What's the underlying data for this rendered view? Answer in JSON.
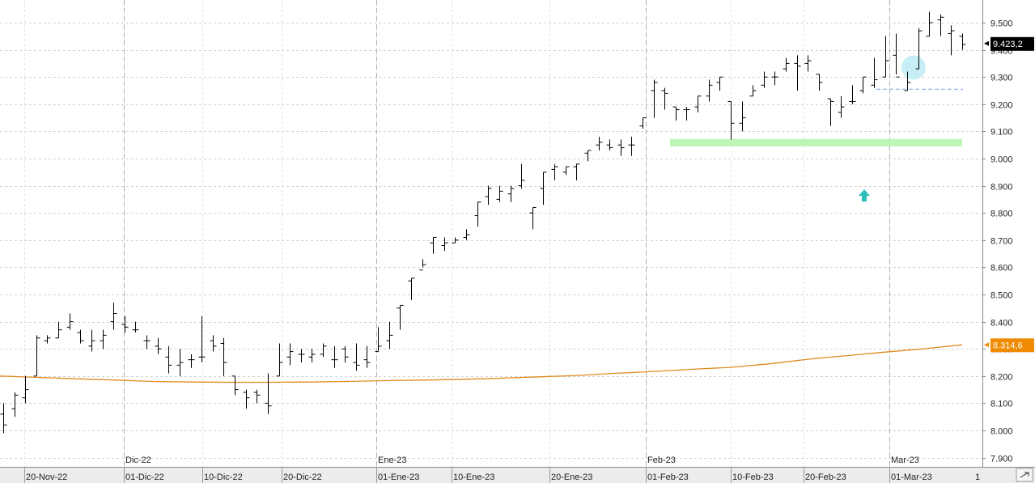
{
  "chart_data": {
    "type": "ohlc",
    "ylim": [
      7900,
      9550
    ],
    "y_ticks": [
      "9.500",
      "9.400",
      "9.300",
      "9.200",
      "9.100",
      "9.000",
      "8.900",
      "8.800",
      "8.700",
      "8.600",
      "8.500",
      "8.400",
      "8.300",
      "8.200",
      "8.100",
      "8.000",
      "7.900"
    ],
    "x_date_labels": [
      "20-Nov-22",
      "01-Dic-22",
      "10-Dic-22",
      "20-Dic-22",
      "01-Ene-23",
      "10-Ene-23",
      "20-Ene-23",
      "01-Feb-23",
      "10-Feb-23",
      "20-Feb-23",
      "01-Mar-23"
    ],
    "x_month_labels": [
      "Dic-22",
      "Ene-23",
      "Feb-23",
      "Mar-23"
    ],
    "last_price_label": "9.423,2",
    "ma_label": "8.314,6",
    "scroll_label": "1",
    "grid": true,
    "bars": [
      [
        8060,
        8020,
        7990,
        8100
      ],
      [
        8080,
        8130,
        8050,
        8140
      ],
      [
        8120,
        8150,
        8100,
        8200
      ],
      [
        8200,
        8340,
        8200,
        8350
      ],
      [
        8330,
        8340,
        8320,
        8350
      ],
      [
        8340,
        8370,
        8340,
        8400
      ],
      [
        8380,
        8400,
        8370,
        8430
      ],
      [
        8360,
        8330,
        8320,
        8370
      ],
      [
        8310,
        8330,
        8290,
        8370
      ],
      [
        8330,
        8350,
        8300,
        8370
      ],
      [
        8400,
        8430,
        8370,
        8470
      ],
      [
        8390,
        8380,
        8360,
        8420
      ],
      [
        8370,
        8370,
        8360,
        8400
      ],
      [
        8330,
        8330,
        8300,
        8350
      ],
      [
        8310,
        8300,
        8280,
        8340
      ],
      [
        8270,
        8240,
        8210,
        8310
      ],
      [
        8240,
        8250,
        8200,
        8300
      ],
      [
        8260,
        8260,
        8230,
        8280
      ],
      [
        8270,
        8270,
        8250,
        8420
      ],
      [
        8330,
        8310,
        8290,
        8350
      ],
      [
        8320,
        8250,
        8200,
        8340
      ],
      [
        8200,
        8150,
        8130,
        8200
      ],
      [
        8140,
        8120,
        8080,
        8150
      ],
      [
        8140,
        8130,
        8100,
        8150
      ],
      [
        8100,
        8090,
        8060,
        8210
      ],
      [
        8200,
        8250,
        8200,
        8320
      ],
      [
        8270,
        8290,
        8240,
        8320
      ],
      [
        8280,
        8280,
        8250,
        8300
      ],
      [
        8270,
        8280,
        8250,
        8300
      ],
      [
        8280,
        8310,
        8270,
        8320
      ],
      [
        8260,
        8260,
        8230,
        8310
      ],
      [
        8300,
        8270,
        8250,
        8310
      ],
      [
        8250,
        8240,
        8220,
        8320
      ],
      [
        8260,
        8250,
        8230,
        8310
      ],
      [
        8290,
        8310,
        8290,
        8380
      ],
      [
        8330,
        8350,
        8300,
        8400
      ],
      [
        8450,
        8460,
        8370,
        8460
      ],
      [
        8550,
        8560,
        8480,
        8560
      ],
      [
        8590,
        8610,
        8600,
        8630
      ],
      [
        8690,
        8710,
        8650,
        8710
      ],
      [
        8680,
        8690,
        8660,
        8710
      ],
      [
        8690,
        8700,
        8690,
        8710
      ],
      [
        8710,
        8720,
        8700,
        8740
      ],
      [
        8790,
        8840,
        8750,
        8840
      ],
      [
        8860,
        8890,
        8830,
        8900
      ],
      [
        8850,
        8880,
        8840,
        8900
      ],
      [
        8870,
        8890,
        8840,
        8900
      ],
      [
        8900,
        8920,
        8890,
        8980
      ],
      [
        8800,
        8820,
        8740,
        8820
      ],
      [
        8890,
        8950,
        8830,
        8950
      ],
      [
        8960,
        8970,
        8920,
        8980
      ],
      [
        8950,
        8970,
        8940,
        8970
      ],
      [
        8970,
        8980,
        8920,
        8980
      ],
      [
        9020,
        9030,
        8990,
        9030
      ],
      [
        9050,
        9060,
        9030,
        9080
      ],
      [
        9050,
        9040,
        9030,
        9070
      ],
      [
        9050,
        9040,
        9010,
        9070
      ],
      [
        9050,
        9050,
        9010,
        9080
      ],
      [
        9120,
        9150,
        9110,
        9150
      ],
      [
        9250,
        9280,
        9150,
        9290
      ],
      [
        9250,
        9240,
        9180,
        9260
      ],
      [
        9190,
        9180,
        9140,
        9190
      ],
      [
        9180,
        9180,
        9140,
        9190
      ],
      [
        9190,
        9230,
        9170,
        9230
      ],
      [
        9230,
        9270,
        9210,
        9290
      ],
      [
        9280,
        9300,
        9250,
        9300
      ],
      [
        9210,
        9130,
        9070,
        9210
      ],
      [
        9130,
        9150,
        9100,
        9210
      ],
      [
        9230,
        9250,
        9230,
        9270
      ],
      [
        9270,
        9300,
        9260,
        9320
      ],
      [
        9300,
        9300,
        9270,
        9320
      ],
      [
        9330,
        9350,
        9320,
        9370
      ],
      [
        9350,
        9340,
        9250,
        9380
      ],
      [
        9350,
        9360,
        9320,
        9380
      ],
      [
        9310,
        9280,
        9250,
        9310
      ],
      [
        9220,
        9210,
        9120,
        9220
      ],
      [
        9170,
        9190,
        9150,
        9230
      ],
      [
        9210,
        9210,
        9200,
        9270
      ],
      [
        9250,
        9300,
        9240,
        9300
      ],
      [
        9270,
        9290,
        9260,
        9370
      ],
      [
        9300,
        9360,
        9300,
        9450
      ],
      [
        9380,
        9300,
        9310,
        9460
      ],
      [
        9250,
        9280,
        9250,
        9320
      ],
      [
        9330,
        9470,
        9330,
        9480
      ],
      [
        9450,
        9500,
        9450,
        9540
      ],
      [
        9510,
        9520,
        9450,
        9530
      ],
      [
        9460,
        9470,
        9380,
        9490
      ],
      [
        9450,
        9420,
        9400,
        9460
      ]
    ],
    "series": [
      {
        "name": "8.314,6",
        "color": "#e08a1e",
        "values": [
          8200,
          8195,
          8190,
          8185,
          8180,
          8178,
          8177,
          8177,
          8178,
          8180,
          8183,
          8185,
          8188,
          8192,
          8197,
          8202,
          8210,
          8217,
          8225,
          8232,
          8245,
          8262,
          8275,
          8288,
          8300,
          8315
        ]
      }
    ],
    "annotations": {
      "support_band": [
        9040,
        9060
      ],
      "dashed_level": 9255,
      "circle_center_price": 9335,
      "arrow_color": "#2bbfba",
      "band_color": "#bdf5b4",
      "circle_color": "#c5eef7",
      "last_price_badge_color": "#000000",
      "ma_badge_color": "#f08a00"
    }
  }
}
